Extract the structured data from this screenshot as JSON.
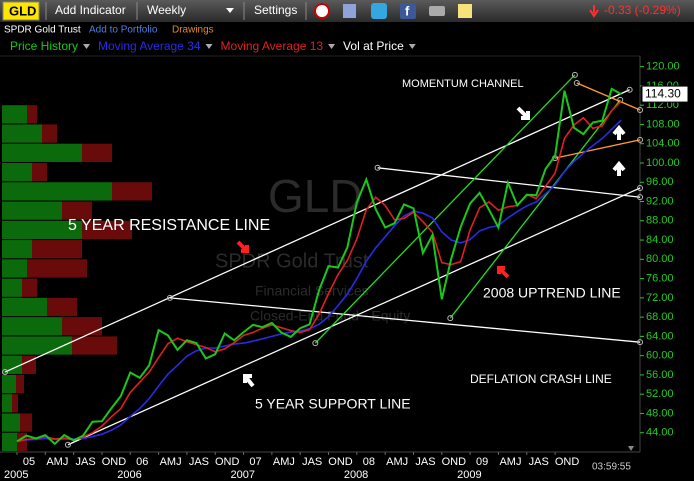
{
  "toolbar": {
    "symbol": "GLD",
    "add_indicator": "Add Indicator",
    "period": "Weekly",
    "settings": "Settings",
    "change": "-0.33 (-0.29%)"
  },
  "info": {
    "name": "SPDR Gold Trust",
    "add_to_portfolio": "Add to Portfolio",
    "drawings": "Drawings"
  },
  "chart_data": {
    "type": "line",
    "watermark": [
      "GLD",
      "SPDR Gold Trust",
      "Financial Services",
      "Closed-End Fund - Equity"
    ],
    "categories": [
      "05",
      null,
      null,
      "AMJ",
      null,
      null,
      "JAS",
      null,
      null,
      "OND",
      null,
      null,
      "06",
      null,
      null,
      "AMJ",
      null,
      null,
      "JAS",
      null,
      null,
      "OND",
      null,
      null,
      "07",
      null,
      null,
      "AMJ",
      null,
      null,
      "JAS",
      null,
      null,
      "OND",
      null,
      null,
      "08",
      null,
      null,
      "AMJ",
      null,
      null,
      "JAS",
      null,
      null,
      "OND",
      null,
      null,
      "09",
      null,
      null,
      "AMJ",
      null,
      null,
      "JAS",
      null,
      null,
      "OND",
      null,
      null,
      null,
      null,
      null,
      null,
      null
    ],
    "years": [
      "2005",
      "2006",
      "2007",
      "2008",
      "2009"
    ],
    "series": [
      {
        "name": "Price History",
        "color": "#19c819",
        "values": [
          42.2,
          43.4,
          42.8,
          43.5,
          41.7,
          43.5,
          42.4,
          43.4,
          46.3,
          46.4,
          49.1,
          51.6,
          56.5,
          55.4,
          58.0,
          65.3,
          64.2,
          61.2,
          63.2,
          62.6,
          59.4,
          60.3,
          64.6,
          63.2,
          64.9,
          66.4,
          65.9,
          66.8,
          64.8,
          63.9,
          65.7,
          66.5,
          73.6,
          78.6,
          78.3,
          82.5,
          91.8,
          96.6,
          90.4,
          86.6,
          87.5,
          91.4,
          90.6,
          81.3,
          85.0,
          71.7,
          80.1,
          86.7,
          91.6,
          93.8,
          90.3,
          86.6,
          95.9,
          91.2,
          93.4,
          93.3,
          98.8,
          101.5,
          115.0,
          107.3,
          106.0,
          108.4,
          108.8,
          115.4,
          114.3
        ]
      },
      {
        "name": "Moving Average 34",
        "color": "#2a2ae6",
        "values": [
          42.2,
          42.5,
          42.6,
          42.8,
          42.6,
          42.7,
          42.7,
          42.8,
          43.2,
          43.7,
          44.5,
          45.6,
          47.4,
          49.0,
          51.1,
          53.7,
          56.2,
          58.0,
          59.9,
          61.0,
          61.6,
          61.6,
          62.0,
          62.4,
          62.6,
          63.0,
          63.5,
          64.0,
          64.5,
          64.9,
          65.1,
          65.6,
          66.5,
          68.1,
          70.4,
          72.8,
          76.0,
          79.6,
          82.4,
          84.7,
          87.0,
          89.0,
          90.0,
          89.6,
          88.6,
          85.7,
          84.0,
          83.4,
          84.1,
          85.9,
          86.6,
          87.0,
          88.6,
          89.9,
          91.1,
          91.9,
          93.6,
          95.4,
          98.2,
          100.3,
          102.0,
          103.6,
          105.1,
          107.0,
          108.9
        ]
      },
      {
        "name": "Moving Average 13",
        "color": "#e02020",
        "values": [
          42.2,
          42.6,
          42.8,
          43.2,
          42.7,
          42.9,
          42.5,
          43.1,
          44.0,
          45.4,
          47.3,
          49.0,
          52.4,
          54.5,
          56.6,
          59.6,
          62.5,
          63.6,
          62.9,
          62.3,
          61.7,
          60.8,
          61.4,
          62.7,
          64.2,
          64.8,
          65.7,
          66.4,
          65.8,
          65.2,
          64.8,
          65.4,
          68.6,
          72.9,
          76.8,
          79.8,
          84.2,
          90.3,
          92.9,
          91.2,
          88.2,
          88.5,
          89.8,
          87.8,
          85.6,
          79.3,
          78.9,
          79.5,
          86.1,
          90.7,
          91.9,
          90.2,
          90.9,
          91.2,
          93.5,
          92.6,
          95.2,
          97.9,
          105.1,
          107.9,
          109.4,
          107.2,
          107.7,
          110.9,
          112.8
        ]
      }
    ],
    "last_price_label": "114.30",
    "ylim": [
      40,
      122
    ],
    "yticks": [
      {
        "value": 44,
        "label": "44.00"
      },
      {
        "value": 48,
        "label": "48.00"
      },
      {
        "value": 52,
        "label": "52.00"
      },
      {
        "value": 56,
        "label": "56.00"
      },
      {
        "value": 60,
        "label": "60.00"
      },
      {
        "value": 64,
        "label": "64.00"
      },
      {
        "value": 68,
        "label": "68.00"
      },
      {
        "value": 72,
        "label": "72.00"
      },
      {
        "value": 76,
        "label": "76.00"
      },
      {
        "value": 80,
        "label": "80.00"
      },
      {
        "value": 84,
        "label": "84.00"
      },
      {
        "value": 88,
        "label": "88.00"
      },
      {
        "value": 92,
        "label": "92.00"
      },
      {
        "value": 96,
        "label": "96.00"
      },
      {
        "value": 100,
        "label": "100.00"
      },
      {
        "value": 104,
        "label": "104.00"
      },
      {
        "value": 108,
        "label": "108.00"
      },
      {
        "value": 112,
        "label": "112.00"
      },
      {
        "value": 116,
        "label": "116.00"
      },
      {
        "value": 120,
        "label": "120.00"
      }
    ],
    "tick_color": "#22cc22",
    "volume_at_price": {
      "name": "Vol at Price",
      "up_color": "#0b6a0b",
      "down_color": "#6a0b0b",
      "bins": [
        40,
        44,
        48,
        52,
        56,
        60,
        64,
        68,
        72,
        76,
        80,
        84,
        88,
        92,
        96,
        100,
        104,
        108,
        112
      ],
      "up": [
        15,
        18,
        10,
        14,
        20,
        70,
        60,
        45,
        20,
        25,
        30,
        80,
        60,
        110,
        30,
        80,
        40,
        25
      ],
      "down": [
        10,
        12,
        6,
        8,
        14,
        45,
        40,
        30,
        15,
        60,
        50,
        50,
        30,
        40,
        15,
        30,
        15,
        10
      ]
    },
    "trendlines": [
      {
        "color": "#ffffff",
        "x": [
          -1.27,
          64.9
        ],
        "y": [
          56.6,
          115.2
        ]
      },
      {
        "color": "#ffffff",
        "x": [
          5.4,
          66
        ],
        "y": [
          41.5,
          94.8
        ]
      },
      {
        "color": "#ffffff",
        "x": [
          16.2,
          66
        ],
        "y": [
          72.0,
          62.8
        ]
      },
      {
        "color": "#ffffff",
        "x": [
          38.2,
          66
        ],
        "y": [
          99.0,
          92.9
        ]
      },
      {
        "color": "#22dd22",
        "x": [
          31.6,
          59.1
        ],
        "y": [
          62.6,
          118.3
        ]
      },
      {
        "color": "#22dd22",
        "x": [
          45.9,
          63.9
        ],
        "y": [
          67.8,
          113.1
        ]
      },
      {
        "color": "#ff9933",
        "x": [
          59.3,
          66
        ],
        "y": [
          116.6,
          111.0
        ]
      },
      {
        "color": "#ff9933",
        "x": [
          57,
          66
        ],
        "y": [
          101.0,
          104.8
        ]
      }
    ],
    "annotations": [
      "MOMENTUM CHANNEL",
      "5 YEAR RESISTANCE LINE",
      "2008 UPTREND LINE",
      "5 YEAR SUPPORT LINE",
      "DEFLATION CRASH LINE"
    ],
    "time": "03:59:55"
  }
}
